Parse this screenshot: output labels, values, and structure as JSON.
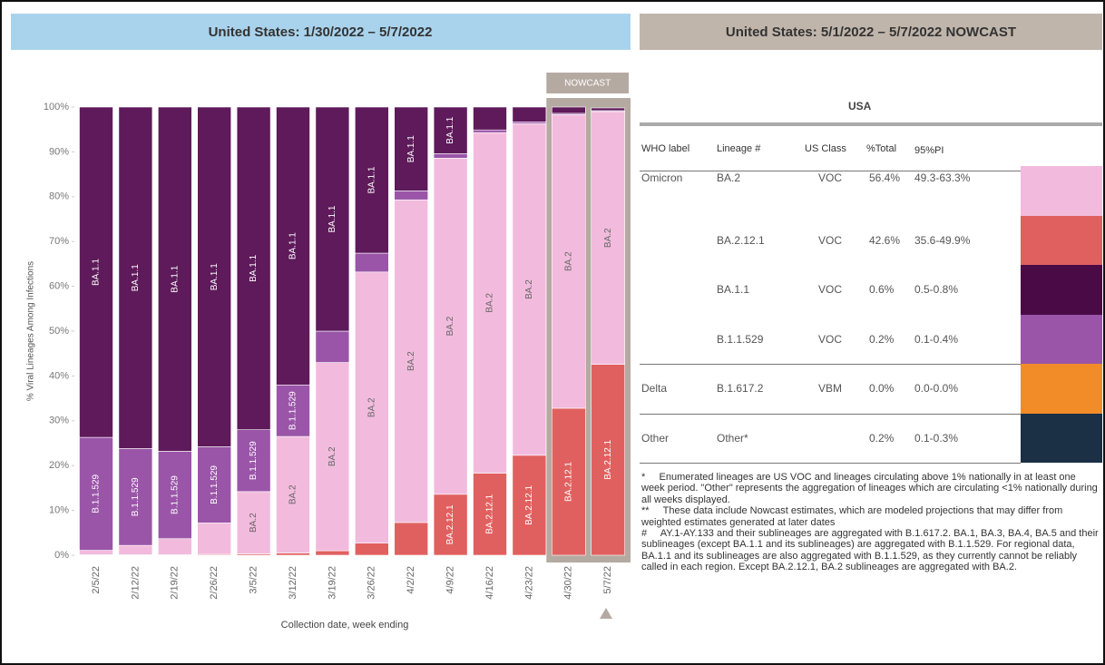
{
  "chart_data": {
    "type": "stacked_bar",
    "title": "United States: 1/30/2022 – 5/7/2022",
    "annotation": "NOWCAST",
    "x_label": "Collection date, week ending",
    "y_label": "% Viral Lineages Among Infections",
    "categories": [
      "2/5/22",
      "2/12/22",
      "2/19/22",
      "2/26/22",
      "3/5/22",
      "3/12/22",
      "3/19/22",
      "3/26/22",
      "4/2/22",
      "4/9/22",
      "4/16/22",
      "4/23/22",
      "4/30/22",
      "5/7/22"
    ],
    "nowcast_count": 2,
    "series": [
      {
        "name": "BA.2.12.1",
        "color": "#e0605f",
        "values": [
          0.1,
          0.1,
          0.1,
          0.2,
          0.3,
          0.5,
          1.0,
          2.7,
          7.3,
          13.6,
          18.3,
          22.3,
          32.8,
          42.6
        ]
      },
      {
        "name": "BA.2",
        "color": "#f2bbdd",
        "values": [
          1.0,
          2.1,
          3.6,
          7.0,
          13.9,
          26.0,
          42.0,
          60.5,
          72.0,
          75.0,
          76.0,
          74.0,
          65.5,
          56.4
        ]
      },
      {
        "name": "B.1.1.529",
        "color": "#9a55a8",
        "values": [
          25.2,
          21.6,
          19.5,
          17.0,
          13.8,
          11.5,
          7.0,
          4.2,
          2.0,
          1.0,
          0.6,
          0.4,
          0.3,
          0.2
        ]
      },
      {
        "name": "BA.1.1",
        "color": "#5e1a5a",
        "values": [
          73.7,
          76.2,
          76.8,
          75.8,
          72.0,
          62.0,
          50.0,
          32.6,
          18.7,
          10.4,
          5.1,
          3.3,
          1.4,
          0.6
        ]
      }
    ],
    "ylim": [
      0,
      100
    ],
    "yticks": [
      {
        "value": 0,
        "label": "0%"
      },
      {
        "value": 10,
        "label": "10%"
      },
      {
        "value": 20,
        "label": "20%"
      },
      {
        "value": 30,
        "label": "30%"
      },
      {
        "value": 40,
        "label": "40%"
      },
      {
        "value": 50,
        "label": "50%"
      },
      {
        "value": 60,
        "label": "60%"
      },
      {
        "value": 70,
        "label": "70%"
      },
      {
        "value": 80,
        "label": "80%"
      },
      {
        "value": 90,
        "label": "90%"
      },
      {
        "value": 100,
        "label": "100%"
      }
    ]
  },
  "nowcast_panel": {
    "title": "United States: 5/1/2022 – 5/7/2022 NOWCAST",
    "region": "USA",
    "columns": [
      "WHO label",
      "Lineage #",
      "US Class",
      "%Total",
      "95%PI"
    ],
    "rows": [
      [
        "Omicron",
        "BA.2",
        "VOC",
        "56.4%",
        "49.3-63.3%"
      ],
      [
        null,
        "BA.2.12.1",
        "VOC",
        "42.6%",
        "35.6-49.9%"
      ],
      [
        null,
        "BA.1.1",
        "VOC",
        "0.6%",
        "0.5-0.8%"
      ],
      [
        null,
        "B.1.1.529",
        "VOC",
        "0.2%",
        "0.1-0.4%"
      ],
      [
        "Delta",
        "B.1.617.2",
        "VBM",
        "0.0%",
        "0.0-0.0%"
      ],
      [
        "Other",
        "Other*",
        null,
        "0.2%",
        "0.1-0.3%"
      ]
    ],
    "row_colors": [
      "#f2bbdd",
      "#e0605f",
      "#4a0a45",
      "#9a55a8",
      "#f28c28",
      "#1b2f45"
    ],
    "footnotes": [
      "*     Enumerated lineages are US VOC and lineages circulating above 1% nationally in at least one week period. \"Other\" represents the aggregation of lineages which are circulating <1% nationally during all weeks displayed.",
      "**     These data include Nowcast estimates, which are modeled projections that may differ from weighted estimates generated at later dates",
      "#     AY.1-AY.133 and their sublineages are aggregated with B.1.617.2. BA.1, BA.3, BA.4, BA.5 and their sublineages (except BA.1.1 and its sublineages) are aggregated with B.1.1.529. For regional data, BA.1.1 and its sublineages are also aggregated with B.1.1.529, as they currently cannot be reliably called in each region. Except BA.2.12.1, BA.2 sublineages are aggregated with BA.2."
    ]
  }
}
